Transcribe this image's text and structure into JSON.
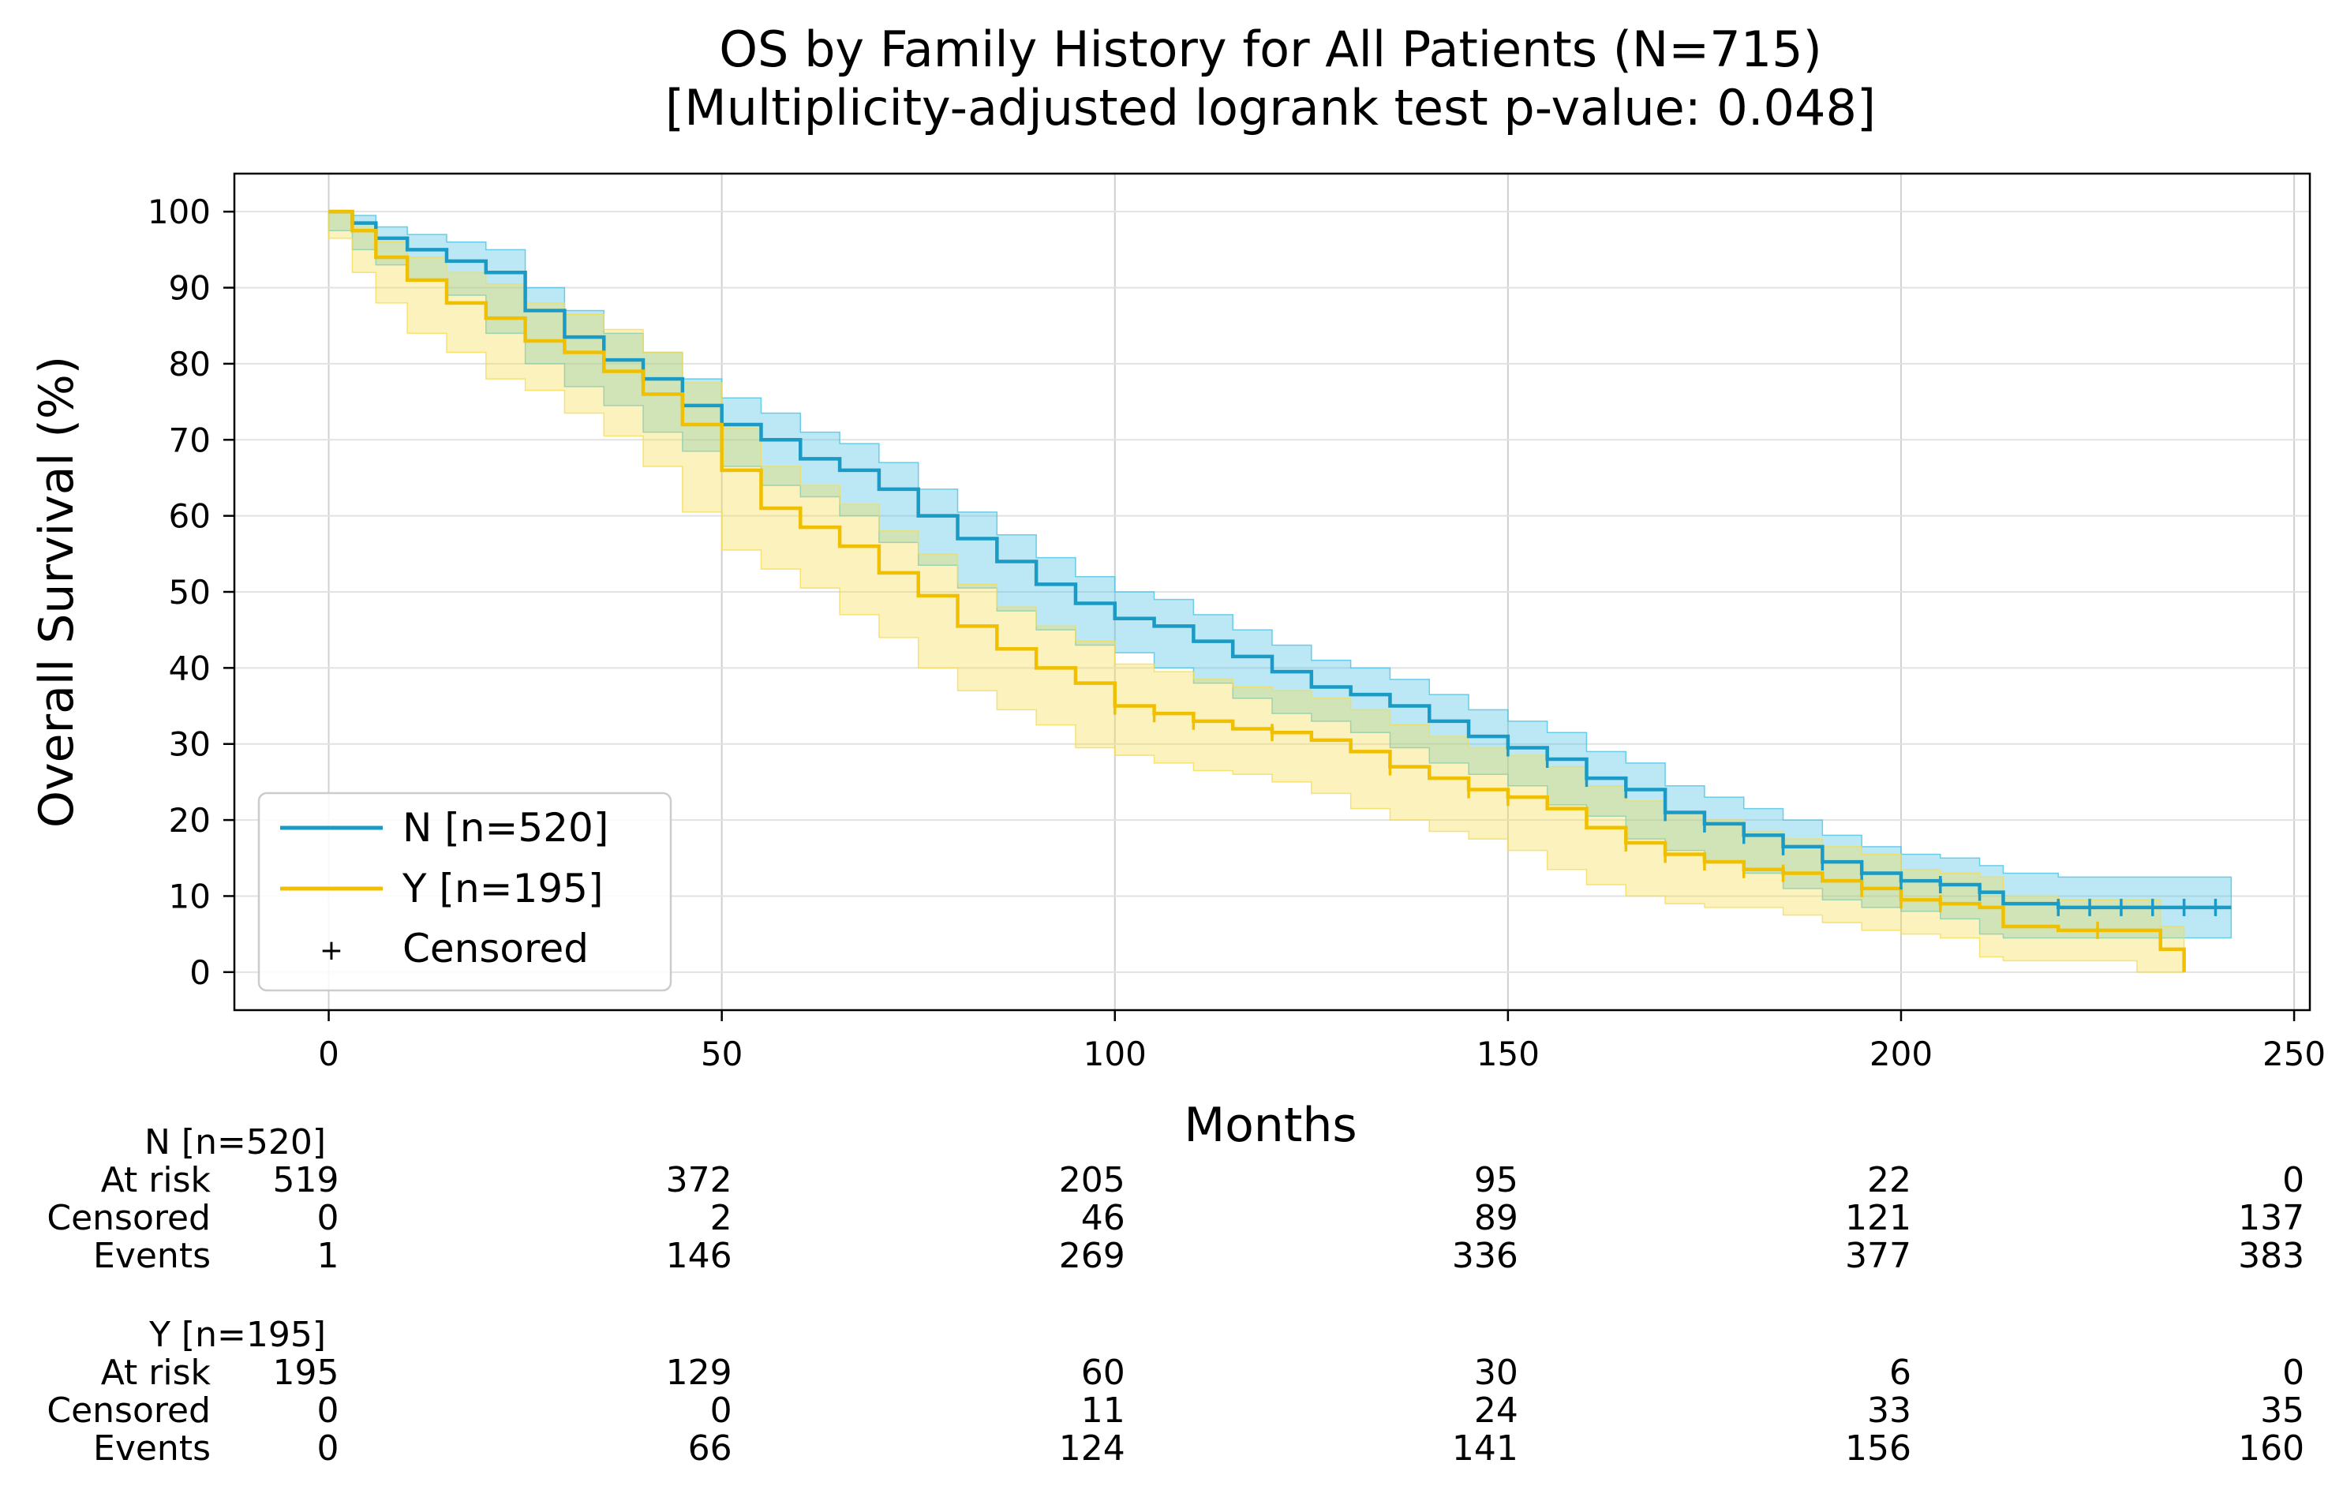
{
  "chart_data": {
    "type": "line",
    "subtype": "kaplan-meier",
    "title": "OS by Family History for All Patients (N=715)",
    "subtitle": "[Multiplicity-adjusted logrank test p-value: 0.048]",
    "xlabel": "Months",
    "ylabel": "Overall Survival (%)",
    "xlim": [
      -12,
      252
    ],
    "ylim": [
      -5,
      105
    ],
    "xticks": [
      0,
      50,
      100,
      150,
      200,
      250
    ],
    "yticks": [
      0,
      10,
      20,
      30,
      40,
      50,
      60,
      70,
      80,
      90,
      100
    ],
    "grid": true,
    "legend_position": "lower-left",
    "censor_marker_label": "Censored",
    "censor_marker_symbol": "+",
    "series": [
      {
        "name": "N [n=520]",
        "color": "#1a9ac4",
        "band_color": "#4cc3e3",
        "x": [
          0,
          3,
          6,
          10,
          15,
          20,
          25,
          30,
          35,
          40,
          45,
          50,
          55,
          60,
          65,
          70,
          75,
          80,
          85,
          90,
          95,
          100,
          105,
          110,
          115,
          120,
          125,
          130,
          135,
          140,
          145,
          150,
          155,
          160,
          165,
          170,
          175,
          180,
          185,
          190,
          195,
          200,
          205,
          210,
          213,
          220,
          230,
          242
        ],
        "y": [
          100,
          98.5,
          96.5,
          95,
          93.5,
          92,
          87,
          83.5,
          80.5,
          78,
          74.5,
          72,
          70,
          67.5,
          66,
          63.5,
          60,
          57,
          54,
          51,
          48.5,
          46.5,
          45.5,
          43.5,
          41.5,
          39.5,
          37.5,
          36.5,
          35,
          33,
          31,
          29.5,
          28,
          25.5,
          24,
          21,
          19.5,
          18,
          16.5,
          14.5,
          13,
          12,
          11.5,
          10.5,
          9,
          8.5,
          8.5,
          8.5
        ],
        "ci_half_width": [
          0,
          1,
          1.5,
          2,
          2.5,
          3,
          3,
          3.5,
          3.5,
          3.5,
          3.5,
          3.5,
          3.5,
          3.5,
          3.5,
          3.5,
          3.5,
          3.5,
          3.5,
          3.5,
          3.5,
          3.5,
          3.5,
          3.5,
          3.5,
          3.5,
          3.5,
          3.5,
          3.5,
          3.5,
          3.5,
          3.5,
          3.5,
          3.5,
          3.5,
          3.5,
          3.5,
          3.5,
          3.5,
          3.5,
          3.5,
          3.5,
          3.5,
          3.5,
          4,
          4,
          4,
          4
        ],
        "censored_x": [
          150,
          155,
          160,
          165,
          170,
          175,
          180,
          185,
          190,
          195,
          200,
          205,
          210,
          220,
          224,
          228,
          232,
          236,
          240
        ]
      },
      {
        "name": "Y [n=195]",
        "color": "#f0c000",
        "band_color": "#f5dc55",
        "x": [
          0,
          3,
          6,
          10,
          15,
          20,
          25,
          30,
          35,
          40,
          45,
          50,
          55,
          60,
          65,
          70,
          75,
          80,
          85,
          90,
          95,
          100,
          105,
          110,
          115,
          120,
          125,
          130,
          135,
          140,
          145,
          150,
          155,
          160,
          165,
          170,
          175,
          180,
          185,
          190,
          195,
          200,
          205,
          210,
          213,
          220,
          230,
          233,
          236
        ],
        "y": [
          100,
          97.5,
          94,
          91,
          88,
          86,
          83,
          81.5,
          79,
          76,
          72,
          66,
          61,
          58.5,
          56,
          52.5,
          49.5,
          45.5,
          42.5,
          40,
          38,
          35,
          34,
          33,
          32,
          31.5,
          30.5,
          29,
          27,
          25.5,
          24,
          23,
          21.5,
          19,
          17,
          15.5,
          14.5,
          13.5,
          13,
          12,
          11,
          9.5,
          9,
          8.5,
          6,
          5.5,
          5.5,
          3,
          0
        ],
        "ci_half_width": [
          0,
          1,
          2,
          3,
          4,
          4.5,
          5,
          5,
          5.5,
          5.5,
          5.5,
          5.5,
          5.5,
          5.5,
          5.5,
          5.5,
          5.5,
          5.5,
          5.5,
          5.5,
          5.5,
          5.5,
          5.5,
          5.5,
          5.5,
          5.5,
          5.5,
          5.5,
          5.5,
          5.5,
          5.5,
          5.5,
          5.5,
          5.5,
          5.5,
          5.5,
          5.5,
          5,
          4.5,
          4.5,
          4.5,
          4,
          4,
          4,
          4,
          4,
          4,
          3,
          0
        ],
        "censored_x": [
          100,
          105,
          110,
          120,
          135,
          145,
          150,
          165,
          170,
          175,
          180,
          185,
          195,
          200,
          205,
          225
        ]
      }
    ],
    "risk_table": {
      "timepoints": [
        0,
        50,
        100,
        150,
        200,
        250
      ],
      "groups": [
        {
          "label": "N [n=520]",
          "rows": [
            {
              "name": "At risk",
              "values": [
                "519",
                "372",
                "205",
                "95",
                "22",
                "0"
              ]
            },
            {
              "name": "Censored",
              "values": [
                "0",
                "2",
                "46",
                "89",
                "121",
                "137"
              ]
            },
            {
              "name": "Events",
              "values": [
                "1",
                "146",
                "269",
                "336",
                "377",
                "383"
              ]
            }
          ]
        },
        {
          "label": "Y [n=195]",
          "rows": [
            {
              "name": "At risk",
              "values": [
                "195",
                "129",
                "60",
                "30",
                "6",
                "0"
              ]
            },
            {
              "name": "Censored",
              "values": [
                "0",
                "0",
                "11",
                "24",
                "33",
                "35"
              ]
            },
            {
              "name": "Events",
              "values": [
                "0",
                "66",
                "124",
                "141",
                "156",
                "160"
              ]
            }
          ]
        }
      ]
    }
  }
}
